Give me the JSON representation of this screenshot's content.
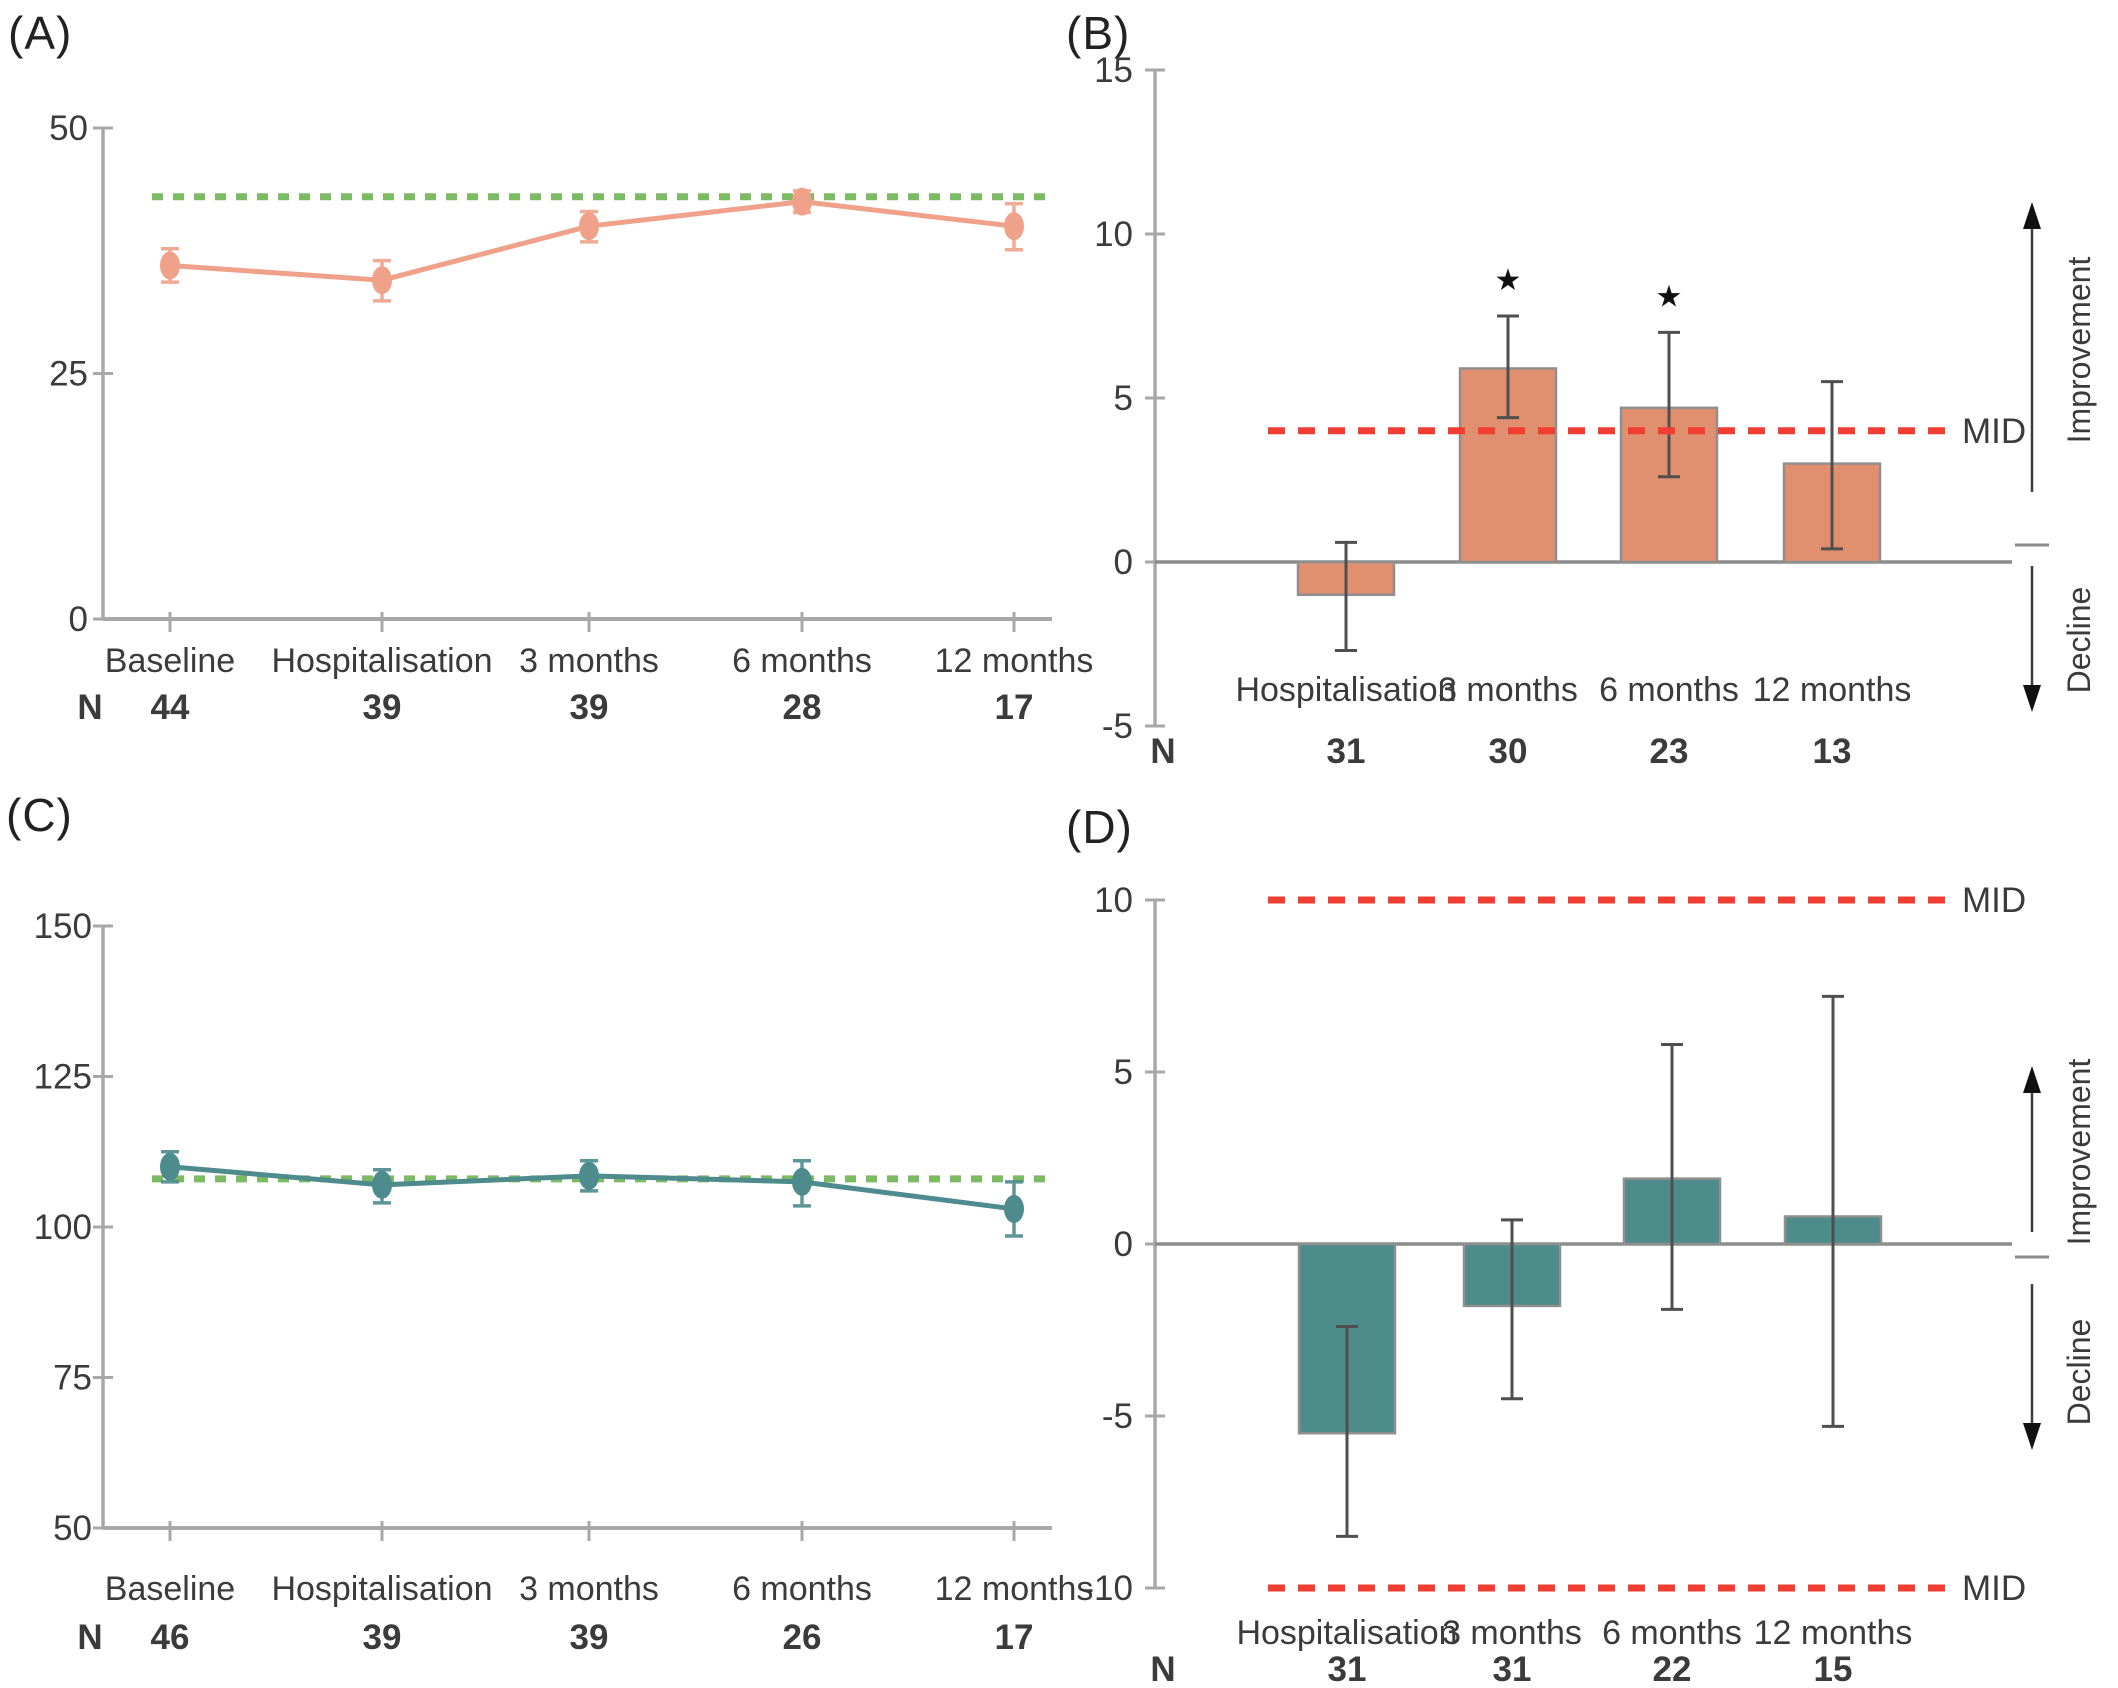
{
  "panel_letters": {
    "a": "(A)",
    "b": "(B)",
    "c": "(C)",
    "d": "(D)"
  },
  "n_row_label": "N",
  "side_labels": {
    "improvement": "Improvement",
    "decline": "Decline",
    "mid": "MID"
  },
  "colors": {
    "salmon_bar": "#E0906F",
    "salmon_line": "#F0A189",
    "teal_bar": "#4E8C8C",
    "teal_line": "#4D8B8D",
    "green_dashed": "#7CBB63",
    "red_dashed": "#F23D33",
    "axis_gray": "#A8A8A8",
    "zero_line_gray": "#8C8C8C",
    "text": "#3B3B3B",
    "error_dark": "#4F4F4F"
  },
  "chart_data": [
    {
      "panel": "A",
      "type": "line",
      "title": "",
      "categories": [
        "Baseline",
        "Hospitalisation",
        "3 months",
        "6 months",
        "12 months"
      ],
      "n_values": [
        "44",
        "39",
        "39",
        "28",
        "17"
      ],
      "values": [
        36,
        34.5,
        40,
        42.5,
        40
      ],
      "err_hi": [
        37.7,
        36.5,
        41.5,
        43.6,
        42.3
      ],
      "err_lo": [
        34.3,
        32.4,
        38.4,
        41.4,
        37.6
      ],
      "ref_line_value": 43,
      "ylim": [
        0,
        50
      ],
      "yticks": [
        0,
        25,
        50
      ],
      "grid": false,
      "color_key": "salmon_line",
      "ref_color_key": "green_dashed"
    },
    {
      "panel": "B",
      "type": "bar",
      "title": "",
      "categories": [
        "Hospitalisation",
        "3 months",
        "6 months",
        "12 months"
      ],
      "n_values": [
        "31",
        "30",
        "23",
        "13"
      ],
      "values": [
        -1,
        5.9,
        4.7,
        3
      ],
      "err_hi": [
        0.6,
        7.5,
        7,
        5.5
      ],
      "err_lo": [
        -2.7,
        4.4,
        2.6,
        0.4
      ],
      "significance": [
        "",
        "★",
        "★",
        ""
      ],
      "mid_values": [
        4
      ],
      "ylim": [
        -5,
        15
      ],
      "yticks": [
        -5,
        0,
        5,
        10,
        15
      ],
      "grid": false,
      "side_arrows": true,
      "color_key": "salmon_bar"
    },
    {
      "panel": "C",
      "type": "line",
      "title": "",
      "categories": [
        "Baseline",
        "Hospitalisation",
        "3 months",
        "6 months",
        "12 months"
      ],
      "n_values": [
        "46",
        "39",
        "39",
        "26",
        "17"
      ],
      "values": [
        110,
        107,
        108.5,
        107.5,
        103
      ],
      "err_hi": [
        112.5,
        109.5,
        111,
        111,
        107.5
      ],
      "err_lo": [
        107.5,
        104,
        106,
        103.5,
        98.5
      ],
      "ref_line_value": 108,
      "ylim": [
        50,
        150
      ],
      "yticks": [
        50,
        75,
        100,
        125,
        150
      ],
      "grid": false,
      "color_key": "teal_line",
      "ref_color_key": "green_dashed"
    },
    {
      "panel": "D",
      "type": "bar",
      "title": "",
      "categories": [
        "Hospitalisation",
        "3 months",
        "6 months",
        "12 months"
      ],
      "n_values": [
        "31",
        "31",
        "22",
        "15"
      ],
      "values": [
        -5.5,
        -1.8,
        1.9,
        0.8
      ],
      "err_hi": [
        -2.4,
        0.7,
        5.8,
        7.2
      ],
      "err_lo": [
        -8.5,
        -4.5,
        -1.9,
        -5.3
      ],
      "significance": [
        "",
        "",
        "",
        ""
      ],
      "mid_values": [
        10,
        -10
      ],
      "ylim": [
        -10,
        10
      ],
      "yticks": [
        -10,
        -5,
        0,
        5,
        10
      ],
      "grid": false,
      "side_arrows": true,
      "color_key": "teal_bar"
    }
  ]
}
